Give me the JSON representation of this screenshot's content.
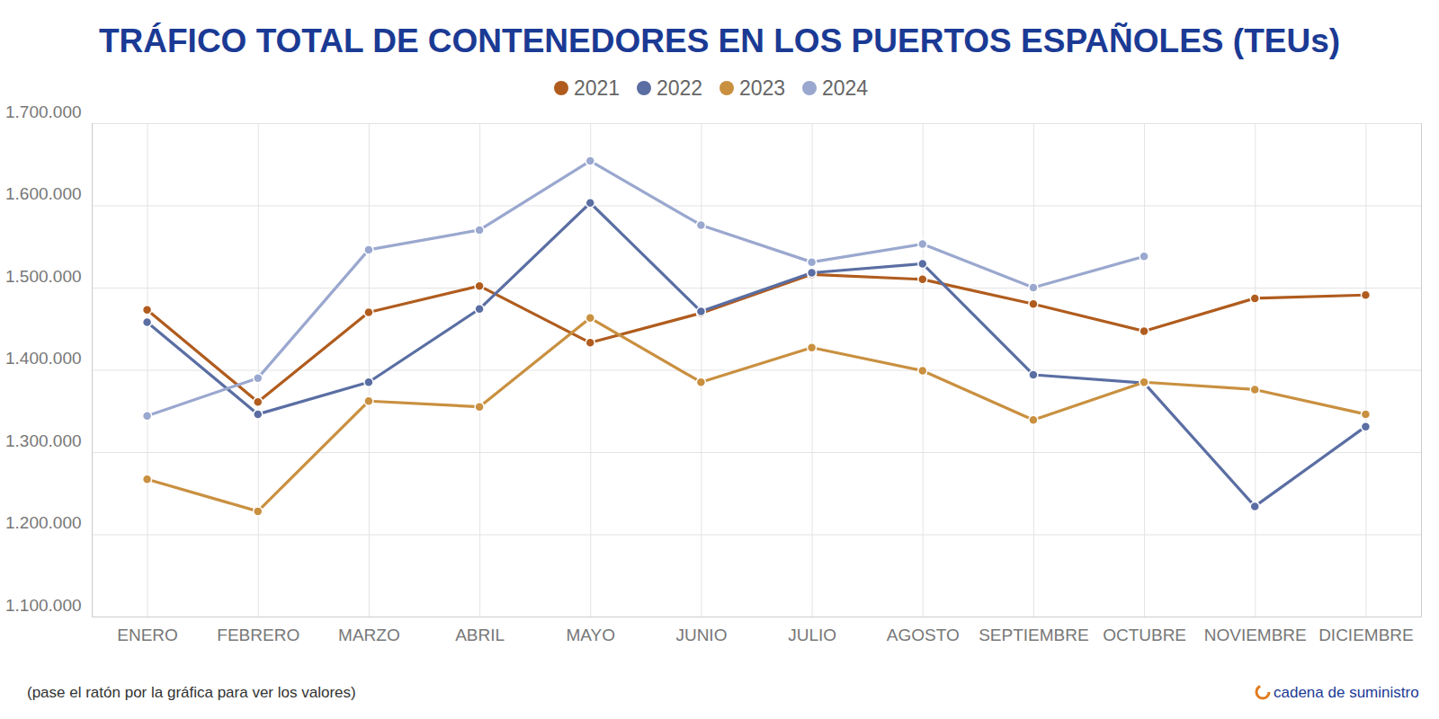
{
  "chart_data": {
    "type": "line",
    "title": "TRÁFICO TOTAL DE CONTENEDORES EN LOS PUERTOS ESPAÑOLES (TEUs)",
    "categories": [
      "ENERO",
      "FEBRERO",
      "MARZO",
      "ABRIL",
      "MAYO",
      "JUNIO",
      "JULIO",
      "AGOSTO",
      "SEPTIEMBRE",
      "OCTUBRE",
      "NOVIEMBRE",
      "DICIEMBRE"
    ],
    "series": [
      {
        "name": "2021",
        "color": "#b05c1e",
        "marker": "circle",
        "line_style": "solid",
        "values": [
          1473000,
          1361000,
          1470000,
          1502000,
          1433000,
          1469000,
          1516000,
          1510000,
          1480000,
          1447000,
          1487000,
          1491000
        ]
      },
      {
        "name": "2022",
        "color": "#5a6ea3",
        "marker": "circle",
        "line_style": "solid",
        "values": [
          1458000,
          1346000,
          1385000,
          1474000,
          1603000,
          1471000,
          1518000,
          1529000,
          1394000,
          1384000,
          1234000,
          1331000
        ]
      },
      {
        "name": "2023",
        "color": "#c99040",
        "marker": "circle",
        "line_style": "solid",
        "values": [
          1267000,
          1228000,
          1362000,
          1355000,
          1463000,
          1385000,
          1427000,
          1399000,
          1339000,
          1385000,
          1376000,
          1346000
        ]
      },
      {
        "name": "2024",
        "color": "#9aa8cf",
        "marker": "circle",
        "line_style": "solid",
        "values": [
          1344000,
          1390000,
          1546000,
          1570000,
          1654000,
          1576000,
          1531000,
          1553000,
          1500000,
          1538000,
          null,
          null
        ]
      }
    ],
    "ylim": [
      1100000,
      1700000
    ],
    "yticks": [
      {
        "value": 1100000,
        "label": "1.100.000"
      },
      {
        "value": 1200000,
        "label": "1.200.000"
      },
      {
        "value": 1300000,
        "label": "1.300.000"
      },
      {
        "value": 1400000,
        "label": "1.400.000"
      },
      {
        "value": 1500000,
        "label": "1.500.000"
      },
      {
        "value": 1600000,
        "label": "1.600.000"
      },
      {
        "value": 1700000,
        "label": "1.700.000"
      }
    ],
    "grid": true,
    "legend": "top",
    "annotations": [
      "(pase el ratón por la gráfica para ver los valores)",
      "cadena de suministro"
    ]
  }
}
